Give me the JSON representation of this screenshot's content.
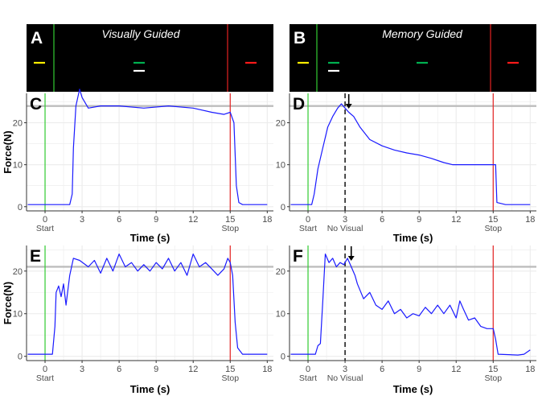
{
  "figure": {
    "colors": {
      "trace": "#1a1aff",
      "start": "#33cc33",
      "stop": "#e52222",
      "target": "#bdbdbd",
      "grid": "#ebebeb",
      "yellow": "#ffee00",
      "green": "#00b050",
      "red": "#ff1a1a",
      "white": "#ffffff"
    },
    "visual_panels": [
      {
        "letter": "A",
        "title": "Visually Guided",
        "bars": [
          "yellow-bar",
          "green-bar",
          "white-bar",
          "red-bar"
        ]
      },
      {
        "letter": "B",
        "title": "Memory Guided",
        "bars": [
          "yellow-bar",
          "green-bar",
          "white-bar",
          "green-bar",
          "red-bar"
        ]
      }
    ]
  },
  "chart_data": [
    {
      "type": "line",
      "panel": "C",
      "condition": "Visually Guided",
      "xlabel": "Time (s)",
      "ylabel": "Force(N)",
      "xlim": [
        -1.5,
        18.5
      ],
      "ylim": [
        -1,
        27
      ],
      "xticks": [
        "0",
        "3",
        "6",
        "9",
        "12",
        "15",
        "18"
      ],
      "yticks": [
        "0",
        "10",
        "20"
      ],
      "tick_sublabels": {
        "0": "Start",
        "15": "Stop"
      },
      "target_force": 24,
      "start_time": 0,
      "stop_time": 15,
      "x": [
        -1.4,
        2.0,
        2.2,
        2.3,
        2.5,
        2.8,
        3.0,
        3.5,
        4.5,
        6,
        8,
        10,
        12,
        13.5,
        14.5,
        15,
        15.3,
        15.5,
        15.7,
        16,
        18
      ],
      "y": [
        0.5,
        0.5,
        3,
        14,
        24,
        28,
        26,
        23.5,
        24,
        24,
        23.5,
        24,
        23.5,
        22.5,
        22,
        22.5,
        20,
        5,
        1,
        0.5,
        0.5
      ]
    },
    {
      "type": "line",
      "panel": "D",
      "condition": "Memory Guided",
      "xlabel": "Time (s)",
      "ylabel": "",
      "xlim": [
        -1.5,
        18.5
      ],
      "ylim": [
        -1,
        27
      ],
      "xticks": [
        "0",
        "3",
        "6",
        "9",
        "12",
        "15",
        "18"
      ],
      "yticks": [
        "0",
        "10",
        "20"
      ],
      "tick_sublabels": {
        "0": "Start",
        "3": "No Visual",
        "15": "Stop"
      },
      "target_force": 24,
      "start_time": 0,
      "stop_time": 15,
      "visual_off_time": 3,
      "arrow_time": 3.3,
      "x": [
        -1.4,
        0.3,
        0.5,
        0.8,
        1.2,
        1.6,
        2.0,
        2.4,
        2.7,
        3.0,
        3.3,
        3.7,
        4.2,
        5,
        6,
        7,
        8,
        9,
        10,
        11,
        11.7,
        12,
        13,
        14,
        15,
        15.2,
        15.3,
        16,
        18
      ],
      "y": [
        0.5,
        0.5,
        3,
        9,
        14,
        19,
        21.5,
        23.5,
        24.5,
        23.5,
        22.5,
        21.5,
        19,
        16,
        14.5,
        13.5,
        12.8,
        12.3,
        11.5,
        10.5,
        10,
        10,
        10,
        10,
        10,
        10,
        1,
        0.5,
        0.5
      ]
    },
    {
      "type": "line",
      "panel": "E",
      "condition": "Visually Guided",
      "xlabel": "Time (s)",
      "ylabel": "Force(N)",
      "xlim": [
        -1.5,
        18.5
      ],
      "ylim": [
        -1,
        26
      ],
      "xticks": [
        "0",
        "3",
        "6",
        "9",
        "12",
        "15",
        "18"
      ],
      "yticks": [
        "0",
        "10",
        "20"
      ],
      "tick_sublabels": {
        "0": "Start",
        "15": "Stop"
      },
      "target_force": 21,
      "start_time": 0,
      "stop_time": 15,
      "x": [
        -1.4,
        0.6,
        0.8,
        0.9,
        1.1,
        1.3,
        1.5,
        1.7,
        2.0,
        2.3,
        2.8,
        3.5,
        4.0,
        4.5,
        5.0,
        5.5,
        6.0,
        6.5,
        7,
        7.5,
        8,
        8.5,
        9,
        9.5,
        10,
        10.5,
        11,
        11.5,
        12,
        12.5,
        13,
        13.5,
        14,
        14.5,
        14.8,
        15.0,
        15.2,
        15.4,
        15.6,
        16,
        18
      ],
      "y": [
        0.5,
        0.5,
        7,
        15,
        16.5,
        14,
        17,
        12,
        19,
        23,
        22.5,
        21,
        22.5,
        19.5,
        23,
        20,
        24,
        21,
        22,
        20,
        21.5,
        20,
        22,
        20.5,
        23,
        20,
        22,
        19,
        24,
        21,
        22,
        20.5,
        19,
        20.5,
        23,
        22,
        19,
        8,
        2,
        0.5,
        0.5
      ]
    },
    {
      "type": "line",
      "panel": "F",
      "condition": "Memory Guided",
      "xlabel": "Time (s)",
      "ylabel": "",
      "xlim": [
        -1.5,
        18.5
      ],
      "ylim": [
        -1,
        26
      ],
      "xticks": [
        "0",
        "3",
        "6",
        "9",
        "12",
        "15",
        "18"
      ],
      "yticks": [
        "0",
        "10",
        "20"
      ],
      "tick_sublabels": {
        "0": "Start",
        "3": "No Visual",
        "15": "Stop"
      },
      "target_force": 21,
      "start_time": 0,
      "stop_time": 15,
      "visual_off_time": 3,
      "arrow_time": 3.5,
      "x": [
        -1.4,
        0.6,
        0.8,
        1.0,
        1.2,
        1.4,
        1.7,
        2.0,
        2.3,
        2.6,
        2.9,
        3.2,
        3.5,
        3.8,
        4.0,
        4.5,
        5,
        5.5,
        6,
        6.5,
        7,
        7.5,
        8,
        8.5,
        9,
        9.5,
        10,
        10.5,
        11,
        11.5,
        12,
        12.3,
        12.6,
        13,
        13.5,
        14,
        14.5,
        15,
        15.2,
        15.4,
        17,
        17.5,
        18
      ],
      "y": [
        0.5,
        0.5,
        2.5,
        3,
        13,
        24,
        22,
        23,
        21,
        22,
        21.5,
        23,
        21,
        19,
        17,
        13.5,
        15,
        12,
        11,
        13,
        10,
        11,
        9,
        10,
        9.5,
        11.5,
        10,
        12,
        10,
        12,
        9,
        13,
        11,
        8.5,
        9,
        7,
        6.5,
        6.5,
        4,
        0.5,
        0.3,
        0.5,
        1.5
      ]
    }
  ]
}
